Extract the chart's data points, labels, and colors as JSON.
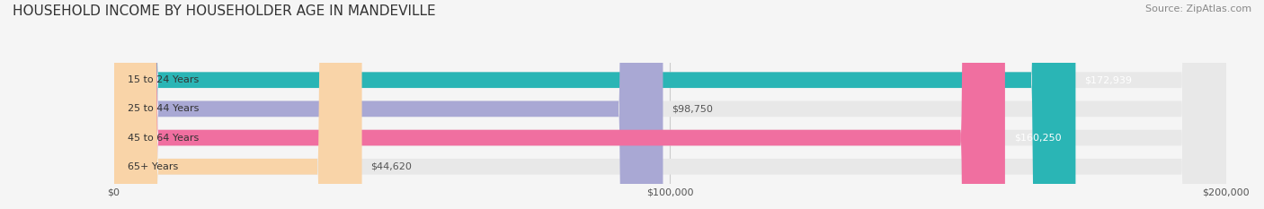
{
  "title": "HOUSEHOLD INCOME BY HOUSEHOLDER AGE IN MANDEVILLE",
  "source": "Source: ZipAtlas.com",
  "categories": [
    "15 to 24 Years",
    "25 to 44 Years",
    "45 to 64 Years",
    "65+ Years"
  ],
  "values": [
    172939,
    98750,
    160250,
    44620
  ],
  "bar_colors": [
    "#2ab5b5",
    "#a9a8d4",
    "#f06fa0",
    "#f9d4a8"
  ],
  "label_colors": [
    "#ffffff",
    "#555555",
    "#ffffff",
    "#555555"
  ],
  "value_labels": [
    "$172,939",
    "$98,750",
    "$160,250",
    "$44,620"
  ],
  "xmax": 200000,
  "xticks": [
    0,
    100000,
    200000
  ],
  "xticklabels": [
    "$0",
    "$100,000",
    "$200,000"
  ],
  "bar_height": 0.55,
  "background_color": "#f5f5f5",
  "bar_bg_color": "#e8e8e8",
  "title_fontsize": 11,
  "source_fontsize": 8
}
